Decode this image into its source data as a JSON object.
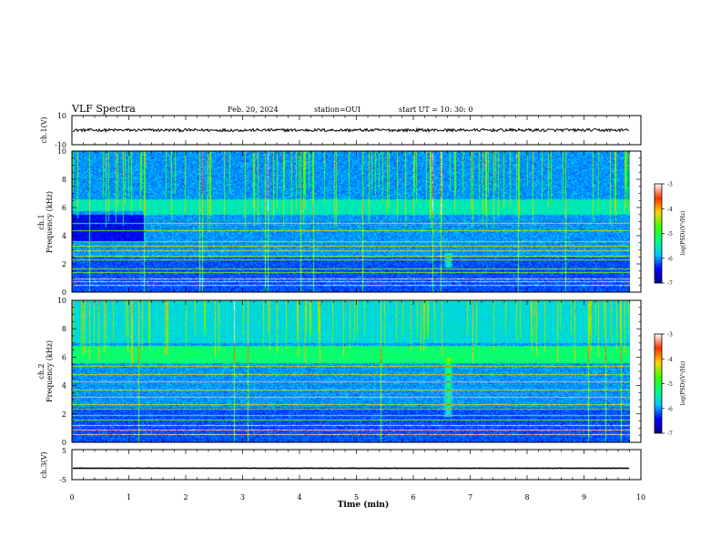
{
  "header": {
    "title": "VLF Spectra",
    "date": "Feb. 20, 2024",
    "station": "station=OUI",
    "start_ut": "start  UT  =   10: 30: 0"
  },
  "chart_data": [
    {
      "type": "line",
      "ylabel": "ch.1(V)",
      "ylim": [
        -10,
        10
      ],
      "yticks": [
        "10",
        "-10"
      ],
      "level": 0,
      "noise_amplitude": 1,
      "color": "#000000"
    },
    {
      "type": "heatmap",
      "ylabel_top": "ch.1",
      "ylabel": "Frequency (kHz)",
      "ylim": [
        0,
        10
      ],
      "yticks": [
        "0",
        "2",
        "4",
        "6",
        "8",
        "10"
      ],
      "colorbar": {
        "label": "log(PSD)(V²/Hz)",
        "range": [
          -7,
          -3
        ],
        "ticks": [
          "-3",
          "-4",
          "-5",
          "-6",
          "-7"
        ],
        "colors": [
          "#00008b",
          "#0000ff",
          "#00c8ff",
          "#00ff80",
          "#40ff00",
          "#ffd000",
          "#ff3000",
          "#ffffff"
        ]
      }
    },
    {
      "type": "heatmap",
      "ylabel_top": "ch.2",
      "ylabel": "Frequency (kHz)",
      "ylim": [
        0,
        10
      ],
      "yticks": [
        "0",
        "2",
        "4",
        "6",
        "8",
        "10"
      ],
      "colorbar": {
        "label": "log(PSD)(V²/Hz)",
        "range": [
          -7,
          -3
        ],
        "ticks": [
          "-3",
          "-4",
          "-5",
          "-6",
          "-7"
        ],
        "colors": [
          "#00008b",
          "#0000ff",
          "#00c8ff",
          "#00ff80",
          "#40ff00",
          "#ffd000",
          "#ff3000",
          "#ffffff"
        ]
      }
    },
    {
      "type": "line",
      "ylabel": "ch.3(V)",
      "ylim": [
        -5,
        5
      ],
      "yticks": [
        "5",
        "-5"
      ],
      "level": -1.2,
      "noise_amplitude": 0.05,
      "color": "#000000"
    }
  ],
  "xaxis": {
    "label": "Time (min)",
    "range": [
      0,
      10
    ],
    "data_end": 9.8,
    "ticks": [
      "0",
      "1",
      "2",
      "3",
      "4",
      "5",
      "6",
      "7",
      "8",
      "9",
      "10"
    ]
  }
}
